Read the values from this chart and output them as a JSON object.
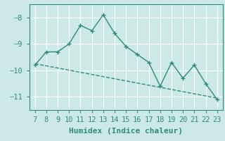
{
  "x": [
    7,
    8,
    9,
    10,
    11,
    12,
    13,
    14,
    15,
    16,
    17,
    18,
    19,
    20,
    21,
    22,
    23
  ],
  "y": [
    -9.8,
    -9.3,
    -9.3,
    -9.0,
    -8.3,
    -8.5,
    -7.9,
    -8.6,
    -9.1,
    -9.4,
    -9.7,
    -10.6,
    -9.7,
    -10.3,
    -9.8,
    -10.5,
    -11.1
  ],
  "trend_x": [
    7,
    23
  ],
  "trend_y": [
    -9.75,
    -11.05
  ],
  "color": "#2e8b7a",
  "background_color": "#cce9e7",
  "grid_color": "#ffffff",
  "xlabel": "Humidex (Indice chaleur)",
  "ylim": [
    -11.5,
    -7.5
  ],
  "xlim": [
    6.5,
    23.5
  ],
  "yticks": [
    -11,
    -10,
    -9,
    -8
  ],
  "xticks": [
    7,
    8,
    9,
    10,
    11,
    12,
    13,
    14,
    15,
    16,
    17,
    18,
    19,
    20,
    21,
    22,
    23
  ],
  "xlabel_fontsize": 8,
  "tick_fontsize": 7.5
}
